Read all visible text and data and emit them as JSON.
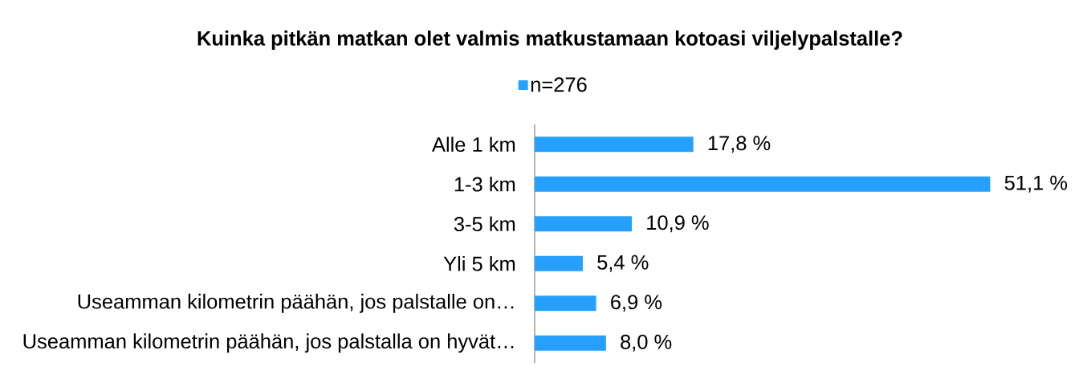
{
  "chart_data": {
    "type": "bar",
    "orientation": "horizontal",
    "title": "Kuinka pitkän matkan olet valmis matkustamaan kotoasi viljelypalstalle?",
    "categories": [
      "Alle 1 km",
      "1-3 km",
      "3-5 km",
      "Yli 5 km",
      "Useamman kilometrin päähän, jos palstalle on…",
      "Useamman kilometrin päähän, jos palstalla on hyvät…"
    ],
    "series": [
      {
        "name": "n=276",
        "color": "#26a0fe",
        "values": [
          17.8,
          51.1,
          10.9,
          5.4,
          6.9,
          8.0
        ],
        "value_labels": [
          "17,8 %",
          "51,1 %",
          "10,9 %",
          "5,4 %",
          "6,9 %",
          "8,0 %"
        ]
      }
    ],
    "legend": "top"
  }
}
